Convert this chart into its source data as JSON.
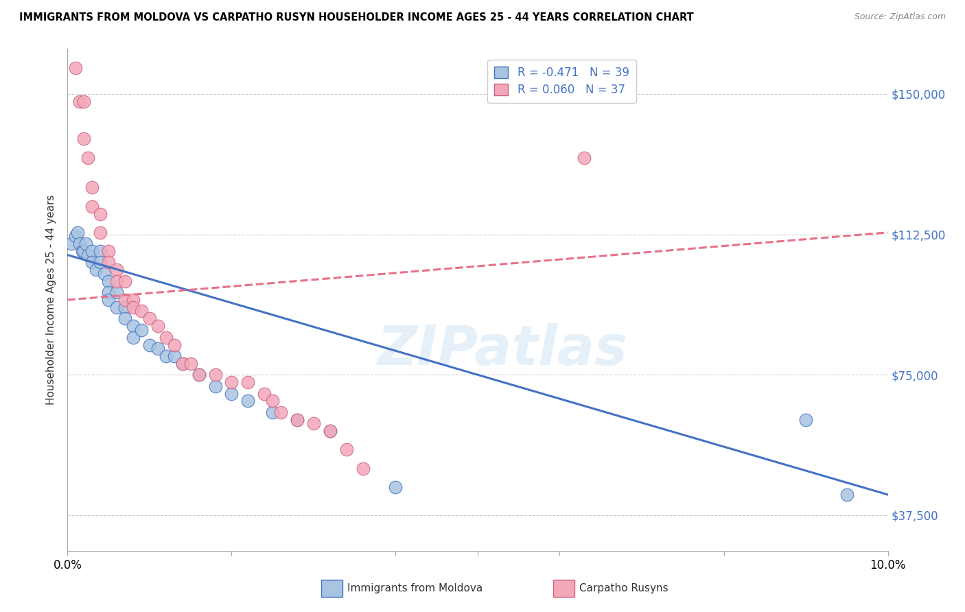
{
  "title": "IMMIGRANTS FROM MOLDOVA VS CARPATHO RUSYN HOUSEHOLDER INCOME AGES 25 - 44 YEARS CORRELATION CHART",
  "source": "Source: ZipAtlas.com",
  "ylabel": "Householder Income Ages 25 - 44 years",
  "xlim": [
    0.0,
    0.1
  ],
  "ylim": [
    28000,
    162000
  ],
  "yticks": [
    37500,
    75000,
    112500,
    150000
  ],
  "ytick_labels": [
    "$37,500",
    "$75,000",
    "$112,500",
    "$150,000"
  ],
  "xticks": [
    0.0,
    0.02,
    0.04,
    0.06,
    0.08,
    0.1
  ],
  "xtick_labels": [
    "0.0%",
    "",
    "",
    "",
    "",
    "10.0%"
  ],
  "legend_r1": "R = -0.471",
  "legend_n1": "N = 39",
  "legend_r2": "R = 0.060",
  "legend_n2": "N = 37",
  "blue_color": "#a8c4e0",
  "pink_color": "#f4a7b9",
  "line_blue": "#4472c4",
  "line_pink": "#e8708a",
  "label1": "Immigrants from Moldova",
  "label2": "Carpatho Rusyns",
  "blue_line_y0": 107000,
  "blue_line_y1": 43000,
  "pink_line_y0": 95000,
  "pink_line_y1": 113000,
  "moldova_x": [
    0.0005,
    0.001,
    0.0012,
    0.0015,
    0.0018,
    0.002,
    0.0022,
    0.0025,
    0.003,
    0.003,
    0.0035,
    0.004,
    0.004,
    0.0045,
    0.005,
    0.005,
    0.005,
    0.006,
    0.006,
    0.007,
    0.007,
    0.008,
    0.008,
    0.009,
    0.01,
    0.011,
    0.012,
    0.013,
    0.014,
    0.016,
    0.018,
    0.02,
    0.022,
    0.025,
    0.028,
    0.032,
    0.04,
    0.09,
    0.095
  ],
  "moldova_y": [
    110000,
    112000,
    113000,
    110000,
    108000,
    108000,
    110000,
    107000,
    108000,
    105000,
    103000,
    108000,
    105000,
    102000,
    100000,
    97000,
    95000,
    97000,
    93000,
    93000,
    90000,
    88000,
    85000,
    87000,
    83000,
    82000,
    80000,
    80000,
    78000,
    75000,
    72000,
    70000,
    68000,
    65000,
    63000,
    60000,
    45000,
    63000,
    43000
  ],
  "rusyn_x": [
    0.001,
    0.0015,
    0.002,
    0.002,
    0.0025,
    0.003,
    0.003,
    0.004,
    0.004,
    0.005,
    0.005,
    0.006,
    0.006,
    0.007,
    0.007,
    0.008,
    0.008,
    0.009,
    0.01,
    0.011,
    0.012,
    0.013,
    0.014,
    0.015,
    0.016,
    0.018,
    0.02,
    0.022,
    0.024,
    0.025,
    0.026,
    0.028,
    0.03,
    0.032,
    0.034,
    0.036,
    0.063
  ],
  "rusyn_y": [
    157000,
    148000,
    148000,
    138000,
    133000,
    125000,
    120000,
    118000,
    113000,
    108000,
    105000,
    103000,
    100000,
    100000,
    95000,
    95000,
    93000,
    92000,
    90000,
    88000,
    85000,
    83000,
    78000,
    78000,
    75000,
    75000,
    73000,
    73000,
    70000,
    68000,
    65000,
    63000,
    62000,
    60000,
    55000,
    50000,
    133000
  ]
}
